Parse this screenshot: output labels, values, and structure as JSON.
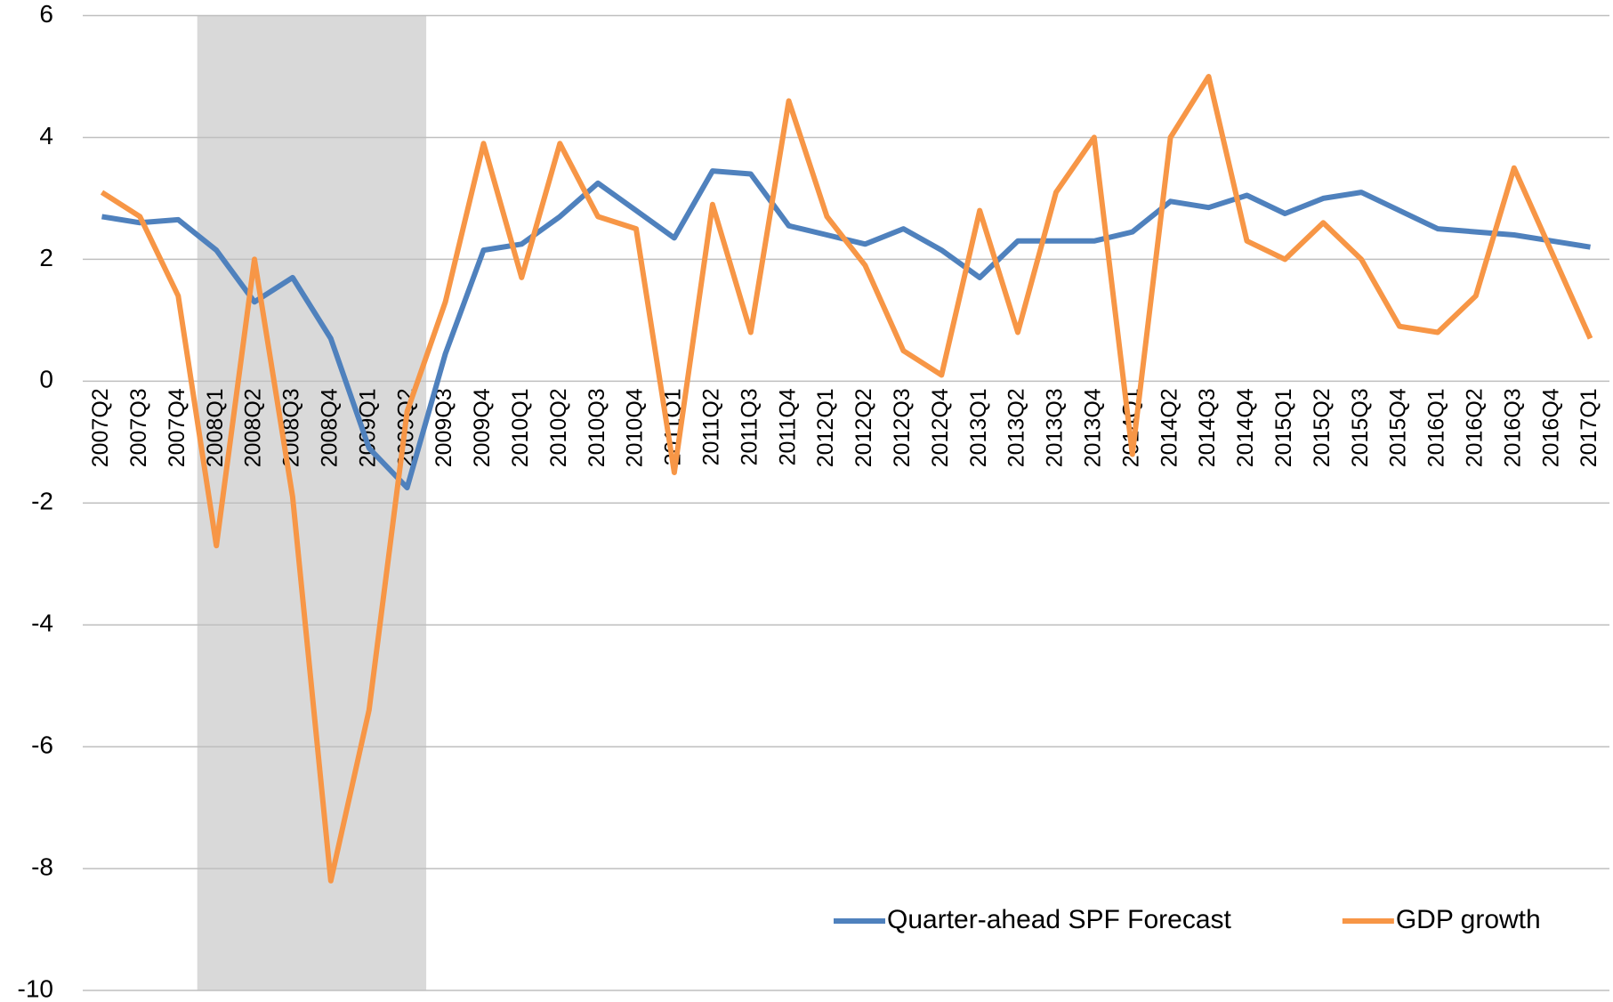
{
  "chart_data": {
    "type": "line",
    "categories": [
      "2007Q2",
      "2007Q3",
      "2007Q4",
      "2008Q1",
      "2008Q2",
      "2008Q3",
      "2008Q4",
      "2009Q1",
      "2009Q2",
      "2009Q3",
      "2009Q4",
      "2010Q1",
      "2010Q2",
      "2010Q3",
      "2010Q4",
      "2011Q1",
      "2011Q2",
      "2011Q3",
      "2011Q4",
      "2012Q1",
      "2012Q2",
      "2012Q3",
      "2012Q4",
      "2013Q1",
      "2013Q2",
      "2013Q3",
      "2013Q4",
      "2014Q1",
      "2014Q2",
      "2014Q3",
      "2014Q4",
      "2015Q1",
      "2015Q2",
      "2015Q3",
      "2015Q4",
      "2016Q1",
      "2016Q2",
      "2016Q3",
      "2016Q4",
      "2017Q1"
    ],
    "series": [
      {
        "name": "Quarter-ahead SPF Forecast",
        "color": "#4f81bd",
        "values": [
          2.7,
          2.6,
          2.65,
          2.15,
          1.3,
          1.7,
          0.7,
          -1.1,
          -1.75,
          0.45,
          2.15,
          2.25,
          2.7,
          3.25,
          2.8,
          2.35,
          3.45,
          3.4,
          2.55,
          2.4,
          2.25,
          2.5,
          2.15,
          1.7,
          2.3,
          2.3,
          2.3,
          2.45,
          2.95,
          2.85,
          3.05,
          2.75,
          3.0,
          3.1,
          2.8,
          2.5,
          2.45,
          2.4,
          2.3,
          2.2
        ]
      },
      {
        "name": "GDP growth",
        "color": "#f79646",
        "values": [
          3.1,
          2.7,
          1.4,
          -2.7,
          2.0,
          -1.9,
          -8.2,
          -5.4,
          -0.5,
          1.3,
          3.9,
          1.7,
          3.9,
          2.7,
          2.5,
          -1.5,
          2.9,
          0.8,
          4.6,
          2.7,
          1.9,
          0.5,
          0.1,
          2.8,
          0.8,
          3.1,
          4.0,
          -1.2,
          4.0,
          5.0,
          2.3,
          2.0,
          2.6,
          2.0,
          0.9,
          0.8,
          1.4,
          3.5,
          2.1,
          0.7
        ]
      }
    ],
    "ylim": [
      -10,
      6
    ],
    "yticks": [
      -10,
      -8,
      -6,
      -4,
      -2,
      0,
      2,
      4,
      6
    ],
    "grid": true,
    "shaded_range": {
      "from": "2008Q1",
      "to": "2009Q2",
      "color": "#d9d9d9"
    },
    "legend": "lower right"
  }
}
